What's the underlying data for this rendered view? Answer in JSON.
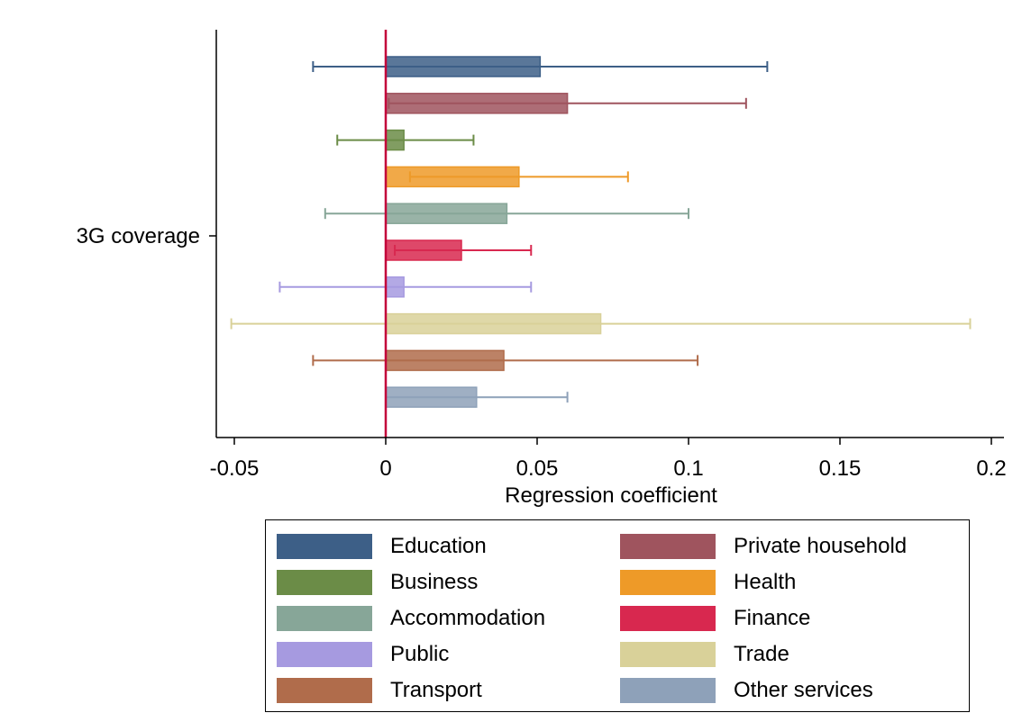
{
  "chart_data": {
    "type": "bar",
    "orientation": "horizontal",
    "category_label": "3G coverage",
    "xlabel": "Regression coefficient",
    "xlim": [
      -0.056,
      0.205
    ],
    "xticks": [
      -0.05,
      0,
      0.05,
      0.1,
      0.15,
      0.2
    ],
    "xtick_labels": [
      "-0.05",
      "0",
      "0.05",
      "0.1",
      "0.15",
      "0.2"
    ],
    "reference_line": 0,
    "grid": false,
    "legend_position": "bottom",
    "series": [
      {
        "name": "Education",
        "value": 0.051,
        "ci_low": -0.024,
        "ci_high": 0.126,
        "color": "#3d5f87"
      },
      {
        "name": "Private household",
        "value": 0.06,
        "ci_low": 0.001,
        "ci_high": 0.119,
        "color": "#9f545e"
      },
      {
        "name": "Business",
        "value": 0.006,
        "ci_low": -0.016,
        "ci_high": 0.029,
        "color": "#6b8c47"
      },
      {
        "name": "Health",
        "value": 0.044,
        "ci_low": 0.008,
        "ci_high": 0.08,
        "color": "#ee9a28"
      },
      {
        "name": "Accommodation",
        "value": 0.04,
        "ci_low": -0.02,
        "ci_high": 0.1,
        "color": "#87a698"
      },
      {
        "name": "Finance",
        "value": 0.025,
        "ci_low": 0.003,
        "ci_high": 0.048,
        "color": "#d8284f"
      },
      {
        "name": "Public",
        "value": 0.006,
        "ci_low": -0.035,
        "ci_high": 0.048,
        "color": "#a69ae0"
      },
      {
        "name": "Trade",
        "value": 0.071,
        "ci_low": -0.051,
        "ci_high": 0.193,
        "color": "#d9d199"
      },
      {
        "name": "Transport",
        "value": 0.039,
        "ci_low": -0.024,
        "ci_high": 0.103,
        "color": "#b06c4b"
      },
      {
        "name": "Other services",
        "value": 0.03,
        "ci_low": 0.0,
        "ci_high": 0.06,
        "color": "#8ea1b9"
      }
    ]
  },
  "colors": {
    "reference_line": "#c3003a",
    "axis": "#000000"
  }
}
